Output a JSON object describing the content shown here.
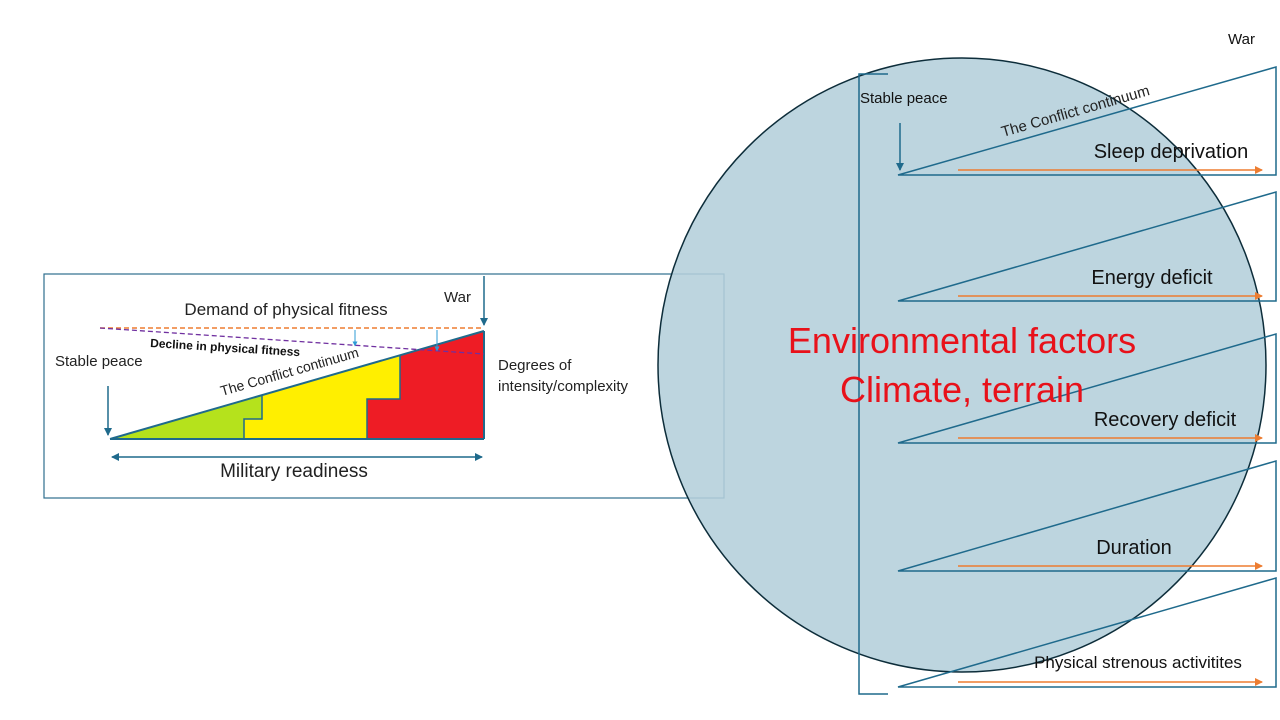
{
  "left_diagram": {
    "demand_label": "Demand of physical fitness",
    "decline_label": "Decline in physical fitness",
    "continuum_label": "The Conflict continuum",
    "stable_peace_label": "Stable peace",
    "war_label": "War",
    "degrees_label_line1": "Degrees of",
    "degrees_label_line2": "intensity/complexity",
    "readiness_label": "Military readiness",
    "zone_colors": {
      "low": "#b5e21c",
      "medium": "#ffef00",
      "high": "#ee1c25"
    }
  },
  "environment": {
    "line1": "Environmental factors",
    "line2": "Climate, terrain",
    "text_color": "#e8111a",
    "circle_fill": "#b4cfdb"
  },
  "right_panel": {
    "war_label": "War",
    "stable_peace_label": "Stable peace",
    "continuum_label": "The Conflict continuum",
    "stressors": [
      {
        "label": "Sleep deprivation"
      },
      {
        "label": "Energy deficit"
      },
      {
        "label": "Recovery deficit"
      },
      {
        "label": "Duration"
      },
      {
        "label": "Physical strenous activitites"
      }
    ]
  },
  "colors": {
    "line_blue": "#1f6a8c",
    "arrow_orange": "#ed7d31",
    "dashed_purple": "#7030a0",
    "light_blue_arrow": "#2e9bd6"
  }
}
